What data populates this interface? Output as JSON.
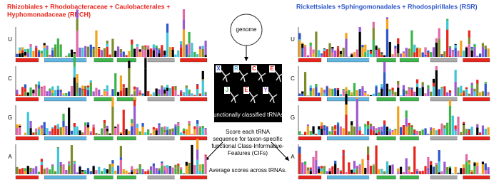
{
  "left_title": [
    "Rhizobiales + Rhodobacteraceae + Caulobacterales +",
    "Hyphomonadaceae (RRCH)"
  ],
  "right_title": [
    "Rickettsiales +Sphingomonadales + Rhodospirillales (RSR)"
  ],
  "left_panel": {
    "rows": [
      "U",
      "C",
      "G",
      "A"
    ]
  },
  "right_panel": {
    "rows": [
      "U",
      "C",
      "G",
      "A"
    ]
  },
  "center": {
    "source": "genome",
    "box_letters": [
      "X",
      "R",
      "C",
      "E",
      "J",
      "E",
      "Y"
    ],
    "box_caption": "functionally classified tRNAs",
    "step_text": [
      "Score each tRNA",
      "sequence for taxon-specific",
      "functional Class-Informative-",
      "Features (CIFs)"
    ],
    "final_text": "Average scores across tRNAs."
  }
}
